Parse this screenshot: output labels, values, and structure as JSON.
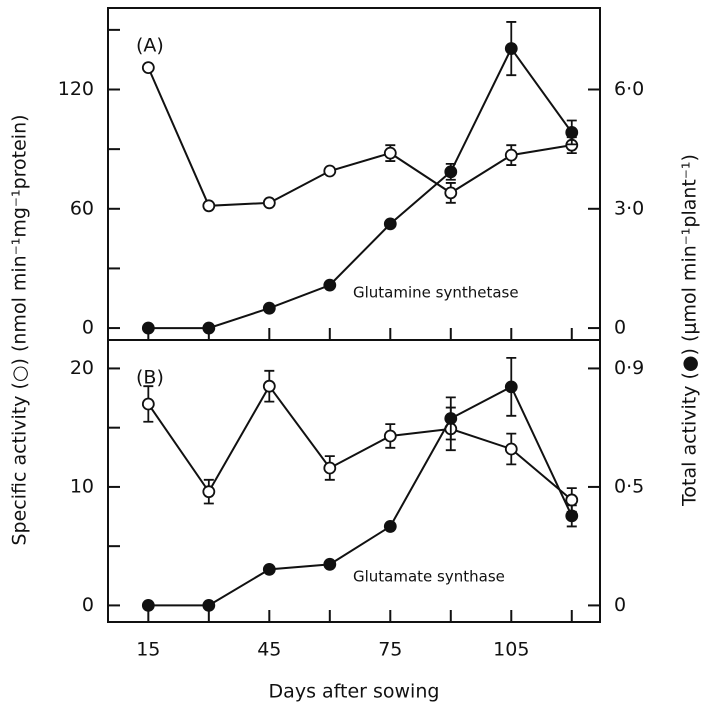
{
  "chart_data": [
    {
      "type": "line",
      "panel": "(A)",
      "annotation": "Glutamine synthetase",
      "ylabel": "Specific activity (○) (nmol min⁻¹mg⁻¹protein)",
      "y2label": "Total activity (●) (μmol min⁻¹plant⁻¹)",
      "x": [
        15,
        30,
        45,
        60,
        75,
        90,
        105,
        120
      ],
      "xlim": [
        5,
        127
      ],
      "xticks_minor": [
        15,
        30,
        45,
        60,
        75,
        90,
        105,
        120
      ],
      "ylim": [
        -6,
        161
      ],
      "yticks": [
        0,
        60,
        120
      ],
      "yticks_minor": [
        30,
        90,
        150
      ],
      "y2lim": [
        -0.3,
        8.05
      ],
      "y2ticks": [
        0,
        {
          "value": 3,
          "label": "3·0"
        },
        {
          "value": 6,
          "label": "6·0"
        }
      ],
      "series": [
        {
          "marker": "open",
          "color": "#111",
          "values": [
            131,
            61.5,
            63,
            79,
            88,
            68,
            87,
            92
          ],
          "errors": [
            null,
            null,
            null,
            null,
            4,
            5,
            5,
            4
          ]
        },
        {
          "marker": "filled",
          "color": "#111",
          "axis": "y2",
          "values": [
            0,
            0,
            0.5,
            1.08,
            2.62,
            3.93,
            7.03,
            4.92
          ],
          "errors": [
            null,
            null,
            null,
            null,
            null,
            0.2,
            0.67,
            0.3
          ]
        }
      ]
    },
    {
      "type": "line",
      "panel": "(B)",
      "annotation": "Glutamate synthase",
      "xlabel": "Days after sowing",
      "x": [
        15,
        30,
        45,
        60,
        75,
        90,
        105,
        120
      ],
      "xlim": [
        5,
        127
      ],
      "xticks": [
        15,
        45,
        75,
        105
      ],
      "xticks_minor": [
        30,
        60,
        90,
        120
      ],
      "ylim": [
        -1.4,
        22.4
      ],
      "yticks": [
        0,
        10,
        20
      ],
      "yticks_minor": [
        5,
        15
      ],
      "y2lim": [
        -0.063,
        1.008
      ],
      "y2ticks": [
        0,
        {
          "value": 0.45,
          "label": "0·5"
        },
        {
          "value": 0.9,
          "label": "0·9"
        }
      ],
      "series": [
        {
          "marker": "open",
          "color": "#111",
          "values": [
            17,
            9.6,
            18.5,
            11.6,
            14.3,
            14.9,
            13.2,
            8.9
          ],
          "errors": [
            1.5,
            1,
            1.3,
            1,
            1,
            1.8,
            1.3,
            1
          ]
        },
        {
          "marker": "filled",
          "color": "#111",
          "axis": "y2",
          "values": [
            0,
            0,
            0.137,
            0.156,
            0.3,
            0.71,
            0.83,
            0.34
          ],
          "errors": [
            null,
            null,
            null,
            null,
            null,
            0.08,
            0.11,
            0.04
          ]
        }
      ]
    }
  ]
}
